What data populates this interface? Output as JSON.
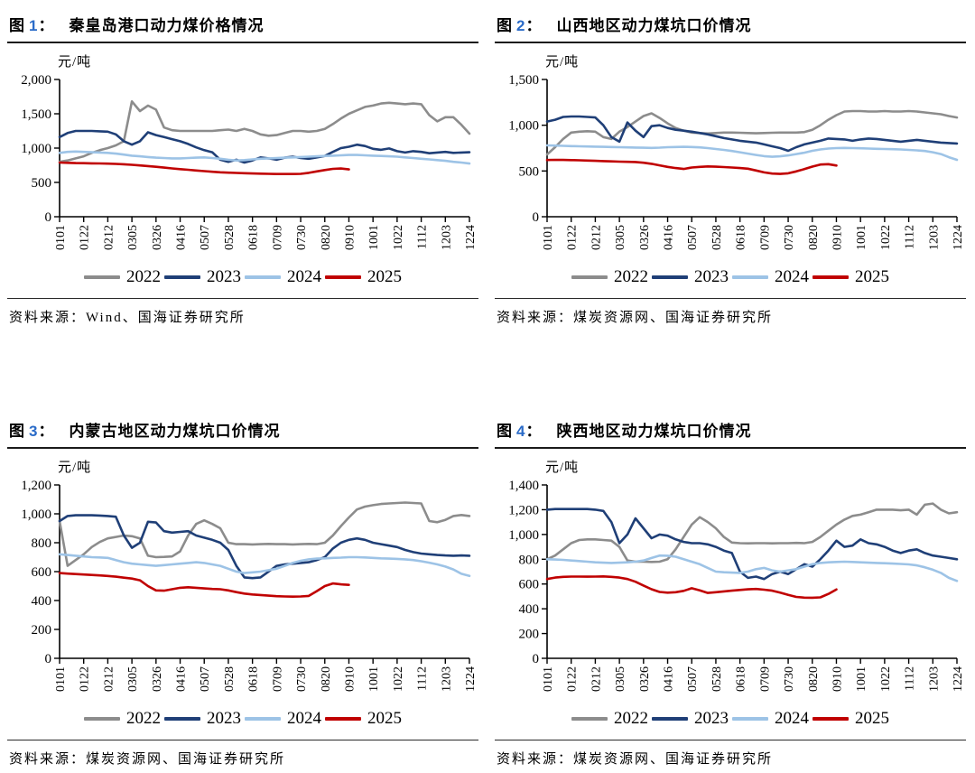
{
  "accent": {
    "figure_number_color": "#2a6bc8"
  },
  "unit_label": "元/吨",
  "figures": [
    {
      "fig": "图",
      "num": "1",
      "colon": "：",
      "title": "秦皇岛港口动力煤价格情况",
      "source": "资料来源：Wind、国海证券研究所"
    },
    {
      "fig": "图",
      "num": "2",
      "colon": "：",
      "title": "山西地区动力煤坑口价情况",
      "source": "资料来源：煤炭资源网、国海证券研究所"
    },
    {
      "fig": "图",
      "num": "3",
      "colon": "：",
      "title": "内蒙古地区动力煤坑口价情况",
      "source": "资料来源：煤炭资源网、国海证券研究所"
    },
    {
      "fig": "图",
      "num": "4",
      "colon": "：",
      "title": "陕西地区动力煤坑口价情况",
      "source": "资料来源：煤炭资源网、国海证券研究所"
    }
  ],
  "chart_data": [
    {
      "type": "line",
      "title": "秦皇岛港口动力煤价格情况",
      "ylabel": "元/吨",
      "ylim": [
        0,
        2000
      ],
      "yticks": [
        "0",
        "500",
        "1,000",
        "1,500",
        "2,000"
      ],
      "grid": false,
      "legend_position": "bottom",
      "weeks": 52,
      "x_tick_labels": [
        "0101",
        "0122",
        "0212",
        "0305",
        "0326",
        "0416",
        "0507",
        "0528",
        "0618",
        "0709",
        "0730",
        "0820",
        "0910",
        "1001",
        "1022",
        "1112",
        "1203",
        "1224"
      ],
      "series": [
        {
          "name": "2022",
          "color": "#8c8c8c",
          "values": [
            800,
            820,
            850,
            880,
            930,
            970,
            1000,
            1040,
            1100,
            1680,
            1540,
            1620,
            1560,
            1300,
            1260,
            1250,
            1250,
            1250,
            1250,
            1250,
            1260,
            1270,
            1250,
            1280,
            1250,
            1200,
            1180,
            1190,
            1220,
            1250,
            1250,
            1240,
            1250,
            1280,
            1350,
            1430,
            1500,
            1550,
            1600,
            1620,
            1650,
            1660,
            1650,
            1640,
            1650,
            1640,
            1480,
            1390,
            1450,
            1450,
            1340,
            1210
          ]
        },
        {
          "name": "2023",
          "color": "#1f3f77",
          "values": [
            1160,
            1220,
            1250,
            1250,
            1250,
            1245,
            1240,
            1200,
            1100,
            1050,
            1100,
            1230,
            1190,
            1160,
            1130,
            1100,
            1060,
            1010,
            970,
            940,
            830,
            800,
            830,
            790,
            820,
            865,
            850,
            830,
            860,
            875,
            855,
            845,
            865,
            885,
            945,
            1000,
            1020,
            1050,
            1030,
            990,
            975,
            995,
            955,
            935,
            955,
            945,
            925,
            935,
            945,
            930,
            935,
            940
          ]
        },
        {
          "name": "2024",
          "color": "#9dc3e6",
          "values": [
            930,
            945,
            950,
            945,
            940,
            935,
            930,
            920,
            905,
            890,
            880,
            870,
            860,
            855,
            850,
            850,
            855,
            860,
            865,
            855,
            845,
            830,
            820,
            825,
            835,
            845,
            850,
            855,
            860,
            865,
            870,
            875,
            880,
            885,
            890,
            895,
            900,
            900,
            895,
            890,
            885,
            880,
            875,
            865,
            855,
            845,
            835,
            825,
            815,
            800,
            790,
            775
          ]
        },
        {
          "name": "2025",
          "color": "#c00000",
          "values": [
            790,
            785,
            782,
            780,
            778,
            776,
            774,
            770,
            764,
            756,
            748,
            738,
            728,
            716,
            704,
            694,
            684,
            674,
            664,
            655,
            648,
            642,
            638,
            634,
            630,
            627,
            625,
            623,
            622,
            622,
            625,
            640,
            660,
            680,
            698,
            702,
            690
          ]
        }
      ]
    },
    {
      "type": "line",
      "title": "山西地区动力煤坑口价情况",
      "ylabel": "元/吨",
      "ylim": [
        0,
        1500
      ],
      "yticks": [
        "0",
        "500",
        "1,000",
        "1,500"
      ],
      "grid": false,
      "legend_position": "bottom",
      "weeks": 52,
      "x_tick_labels": [
        "0101",
        "0122",
        "0212",
        "0305",
        "0326",
        "0416",
        "0507",
        "0528",
        "0618",
        "0709",
        "0730",
        "0820",
        "0910",
        "1001",
        "1022",
        "1112",
        "1203",
        "1224"
      ],
      "series": [
        {
          "name": "2022",
          "color": "#8c8c8c",
          "values": [
            680,
            760,
            850,
            920,
            930,
            935,
            930,
            870,
            850,
            930,
            980,
            1040,
            1100,
            1130,
            1080,
            1020,
            970,
            940,
            920,
            915,
            910,
            915,
            920,
            920,
            918,
            915,
            912,
            915,
            918,
            920,
            920,
            920,
            925,
            950,
            1000,
            1060,
            1110,
            1150,
            1155,
            1155,
            1150,
            1150,
            1155,
            1150,
            1150,
            1155,
            1150,
            1140,
            1130,
            1120,
            1100,
            1085
          ]
        },
        {
          "name": "2023",
          "color": "#1f3f77",
          "values": [
            1040,
            1060,
            1090,
            1095,
            1095,
            1090,
            1085,
            1000,
            870,
            820,
            1030,
            940,
            870,
            990,
            1000,
            970,
            950,
            940,
            930,
            915,
            900,
            880,
            860,
            845,
            830,
            820,
            810,
            790,
            770,
            750,
            720,
            760,
            790,
            810,
            830,
            855,
            850,
            845,
            830,
            845,
            855,
            850,
            840,
            830,
            820,
            830,
            840,
            830,
            820,
            810,
            805,
            800
          ]
        },
        {
          "name": "2024",
          "color": "#9dc3e6",
          "values": [
            780,
            778,
            775,
            772,
            770,
            768,
            766,
            764,
            762,
            760,
            758,
            756,
            754,
            752,
            755,
            760,
            762,
            764,
            762,
            758,
            750,
            740,
            730,
            718,
            705,
            690,
            675,
            662,
            655,
            660,
            670,
            685,
            700,
            720,
            735,
            745,
            750,
            752,
            750,
            748,
            745,
            742,
            740,
            738,
            735,
            730,
            725,
            718,
            705,
            685,
            650,
            622
          ]
        },
        {
          "name": "2025",
          "color": "#c00000",
          "values": [
            620,
            622,
            621,
            619,
            617,
            614,
            611,
            608,
            605,
            602,
            600,
            598,
            590,
            578,
            562,
            545,
            532,
            522,
            538,
            545,
            550,
            547,
            543,
            538,
            532,
            525,
            505,
            485,
            472,
            468,
            475,
            495,
            520,
            548,
            570,
            574,
            560
          ]
        }
      ]
    },
    {
      "type": "line",
      "title": "内蒙古地区动力煤坑口价情况",
      "ylabel": "元/吨",
      "ylim": [
        0,
        1200
      ],
      "yticks": [
        "0",
        "200",
        "400",
        "600",
        "800",
        "1,000",
        "1,200"
      ],
      "grid": false,
      "legend_position": "bottom",
      "weeks": 52,
      "x_tick_labels": [
        "0101",
        "0122",
        "0212",
        "0305",
        "0326",
        "0416",
        "0507",
        "0528",
        "0618",
        "0709",
        "0730",
        "0820",
        "0910",
        "1001",
        "1022",
        "1112",
        "1203",
        "1224"
      ],
      "series": [
        {
          "name": "2022",
          "color": "#8c8c8c",
          "values": [
            950,
            640,
            680,
            720,
            770,
            805,
            830,
            840,
            850,
            845,
            830,
            710,
            700,
            702,
            705,
            740,
            850,
            930,
            955,
            930,
            900,
            800,
            790,
            790,
            788,
            790,
            792,
            790,
            790,
            788,
            790,
            792,
            790,
            800,
            850,
            915,
            975,
            1030,
            1050,
            1060,
            1068,
            1072,
            1075,
            1078,
            1075,
            1072,
            950,
            942,
            958,
            985,
            992,
            985
          ]
        },
        {
          "name": "2023",
          "color": "#1f3f77",
          "values": [
            950,
            985,
            990,
            990,
            990,
            988,
            985,
            980,
            850,
            765,
            800,
            945,
            940,
            880,
            870,
            875,
            880,
            850,
            835,
            820,
            800,
            750,
            640,
            560,
            555,
            560,
            600,
            640,
            650,
            655,
            660,
            665,
            680,
            700,
            760,
            800,
            820,
            830,
            820,
            800,
            790,
            780,
            770,
            750,
            735,
            725,
            720,
            715,
            712,
            710,
            712,
            710
          ]
        },
        {
          "name": "2024",
          "color": "#9dc3e6",
          "values": [
            720,
            715,
            710,
            705,
            700,
            698,
            695,
            680,
            665,
            655,
            650,
            645,
            640,
            645,
            650,
            655,
            660,
            665,
            660,
            650,
            640,
            620,
            600,
            590,
            595,
            600,
            610,
            620,
            640,
            660,
            675,
            685,
            690,
            692,
            695,
            697,
            700,
            700,
            698,
            695,
            692,
            690,
            688,
            685,
            680,
            672,
            662,
            650,
            635,
            615,
            585,
            570
          ]
        },
        {
          "name": "2025",
          "color": "#c00000",
          "values": [
            590,
            586,
            583,
            580,
            577,
            574,
            570,
            565,
            558,
            552,
            540,
            500,
            470,
            468,
            478,
            488,
            492,
            488,
            484,
            480,
            478,
            470,
            458,
            448,
            442,
            438,
            434,
            430,
            428,
            427,
            428,
            432,
            465,
            500,
            518,
            512,
            508
          ]
        }
      ]
    },
    {
      "type": "line",
      "title": "陕西地区动力煤坑口价情况",
      "ylabel": "元/吨",
      "ylim": [
        0,
        1400
      ],
      "yticks": [
        "0",
        "200",
        "400",
        "600",
        "800",
        "1,000",
        "1,200",
        "1,400"
      ],
      "grid": false,
      "legend_position": "bottom",
      "weeks": 52,
      "x_tick_labels": [
        "0101",
        "0122",
        "0212",
        "0305",
        "0326",
        "0416",
        "0507",
        "0528",
        "0618",
        "0709",
        "0730",
        "0820",
        "0910",
        "1001",
        "1022",
        "1112",
        "1203",
        "1224"
      ],
      "series": [
        {
          "name": "2022",
          "color": "#8c8c8c",
          "values": [
            800,
            830,
            880,
            930,
            955,
            960,
            960,
            955,
            950,
            900,
            790,
            780,
            780,
            778,
            780,
            800,
            880,
            980,
            1080,
            1140,
            1100,
            1050,
            980,
            935,
            930,
            928,
            930,
            930,
            928,
            930,
            930,
            932,
            930,
            940,
            980,
            1030,
            1080,
            1120,
            1150,
            1160,
            1180,
            1200,
            1200,
            1200,
            1195,
            1200,
            1160,
            1240,
            1250,
            1200,
            1170,
            1180
          ]
        },
        {
          "name": "2023",
          "color": "#1f3f77",
          "values": [
            1200,
            1205,
            1205,
            1205,
            1205,
            1205,
            1200,
            1190,
            1100,
            930,
            1000,
            1130,
            1050,
            970,
            1000,
            990,
            960,
            940,
            930,
            930,
            920,
            900,
            870,
            850,
            700,
            650,
            660,
            640,
            680,
            700,
            680,
            720,
            760,
            740,
            800,
            870,
            950,
            900,
            910,
            960,
            930,
            920,
            900,
            870,
            850,
            870,
            880,
            850,
            830,
            820,
            810,
            800
          ]
        },
        {
          "name": "2024",
          "color": "#9dc3e6",
          "values": [
            800,
            798,
            795,
            790,
            785,
            780,
            775,
            772,
            770,
            772,
            775,
            780,
            790,
            810,
            830,
            828,
            820,
            800,
            780,
            760,
            730,
            700,
            695,
            692,
            690,
            700,
            720,
            730,
            710,
            700,
            710,
            720,
            740,
            760,
            770,
            775,
            778,
            780,
            778,
            775,
            772,
            770,
            768,
            765,
            762,
            758,
            750,
            735,
            715,
            690,
            650,
            625
          ]
        },
        {
          "name": "2025",
          "color": "#c00000",
          "values": [
            640,
            652,
            658,
            660,
            660,
            659,
            660,
            661,
            658,
            652,
            640,
            618,
            588,
            558,
            536,
            530,
            534,
            545,
            566,
            548,
            528,
            534,
            540,
            546,
            552,
            557,
            560,
            554,
            546,
            530,
            512,
            496,
            490,
            489,
            492,
            520,
            556
          ]
        }
      ]
    }
  ]
}
